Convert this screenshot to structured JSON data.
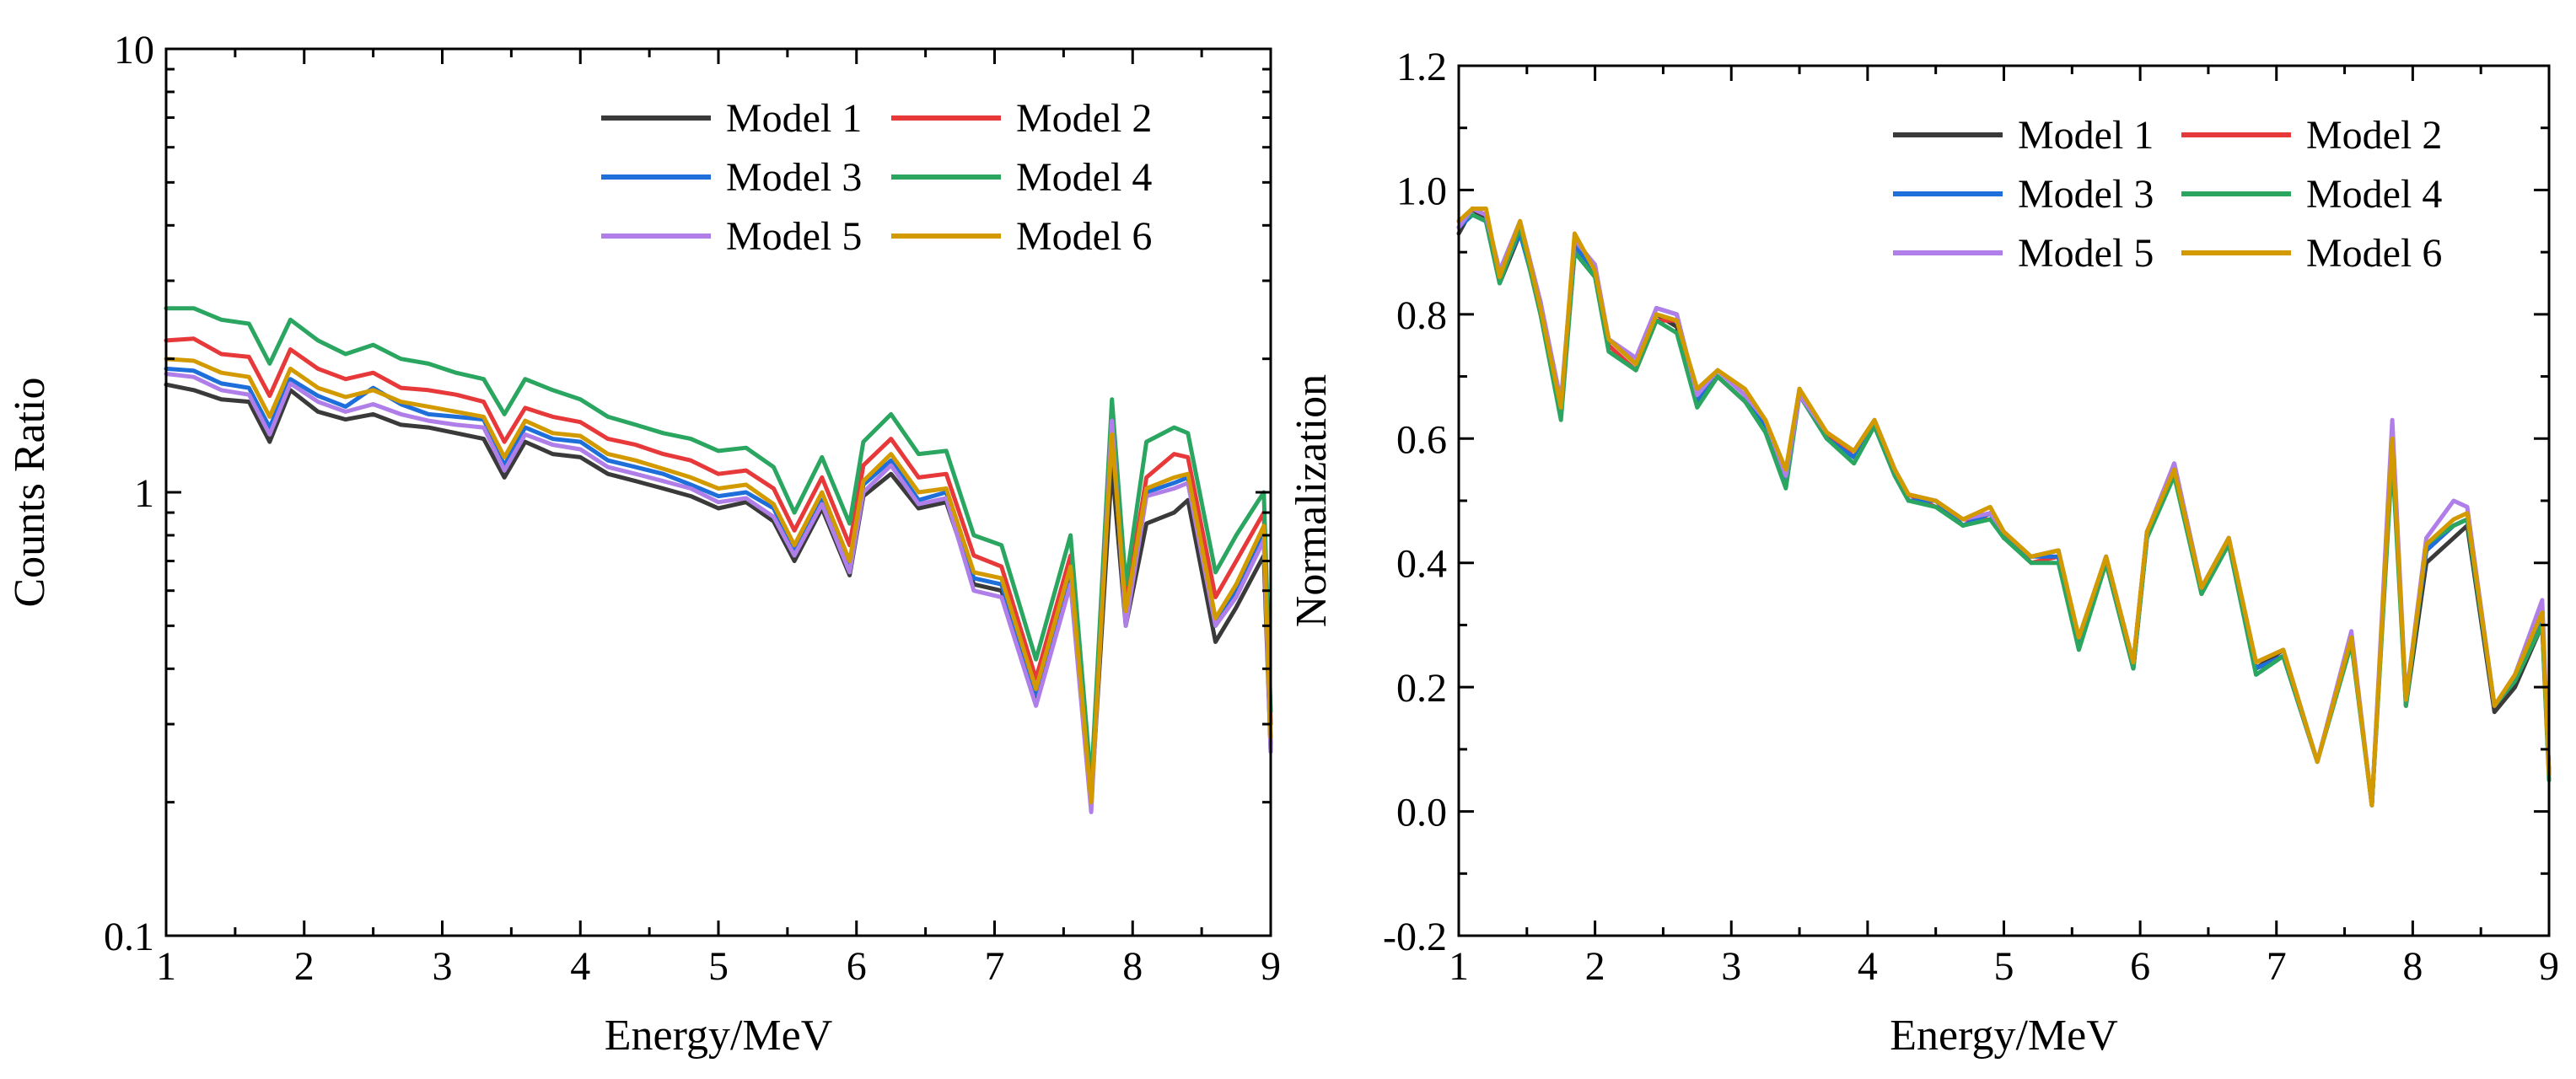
{
  "colors": {
    "model_1": "#3a3a3a",
    "model_2": "#e8393a",
    "model_3": "#1e6fd9",
    "model_4": "#2aa661",
    "model_5": "#b07ee8",
    "model_6": "#d39a00"
  },
  "chart_data": [
    {
      "type": "line",
      "panel": "left",
      "xlabel": "Energy/MeV",
      "ylabel": "Counts Ratio",
      "yscale": "log",
      "xlim": [
        1,
        9
      ],
      "ylim": [
        0.1,
        10
      ],
      "x_ticks": [
        "1",
        "2",
        "3",
        "4",
        "5",
        "6",
        "7",
        "8",
        "9"
      ],
      "y_ticks": [
        "0.1",
        "1",
        "10"
      ],
      "legend": [
        "Model 1",
        "Model 2",
        "Model 3",
        "Model 4",
        "Model 5",
        "Model 6"
      ],
      "legend_position": "top-right",
      "x": [
        1.0,
        1.2,
        1.4,
        1.6,
        1.75,
        1.9,
        2.1,
        2.3,
        2.5,
        2.7,
        2.9,
        3.1,
        3.3,
        3.45,
        3.6,
        3.8,
        4.0,
        4.2,
        4.4,
        4.6,
        4.8,
        5.0,
        5.2,
        5.4,
        5.55,
        5.75,
        5.95,
        6.05,
        6.25,
        6.45,
        6.65,
        6.85,
        7.05,
        7.3,
        7.55,
        7.7,
        7.85,
        7.95,
        8.1,
        8.3,
        8.4,
        8.6,
        8.75,
        8.95,
        9.0
      ],
      "series": [
        {
          "name": "Model 1",
          "values": [
            1.75,
            1.7,
            1.62,
            1.6,
            1.3,
            1.7,
            1.52,
            1.46,
            1.5,
            1.42,
            1.4,
            1.36,
            1.32,
            1.08,
            1.3,
            1.22,
            1.2,
            1.1,
            1.06,
            1.02,
            0.98,
            0.92,
            0.95,
            0.86,
            0.7,
            0.92,
            0.65,
            0.98,
            1.1,
            0.92,
            0.95,
            0.62,
            0.6,
            0.34,
            0.64,
            0.2,
            1.15,
            0.5,
            0.85,
            0.9,
            0.96,
            0.46,
            0.55,
            0.72,
            0.26
          ]
        },
        {
          "name": "Model 2",
          "values": [
            2.2,
            2.22,
            2.05,
            2.02,
            1.65,
            2.1,
            1.9,
            1.8,
            1.86,
            1.72,
            1.7,
            1.66,
            1.6,
            1.3,
            1.55,
            1.48,
            1.44,
            1.32,
            1.28,
            1.22,
            1.18,
            1.1,
            1.12,
            1.02,
            0.82,
            1.08,
            0.76,
            1.15,
            1.32,
            1.08,
            1.1,
            0.72,
            0.68,
            0.38,
            0.72,
            0.21,
            1.5,
            0.56,
            1.08,
            1.22,
            1.2,
            0.58,
            0.7,
            0.9,
            0.3
          ]
        },
        {
          "name": "Model 3",
          "values": [
            1.9,
            1.88,
            1.76,
            1.72,
            1.4,
            1.8,
            1.65,
            1.56,
            1.72,
            1.58,
            1.5,
            1.48,
            1.46,
            1.15,
            1.4,
            1.32,
            1.3,
            1.18,
            1.14,
            1.1,
            1.04,
            0.98,
            1.0,
            0.92,
            0.74,
            0.96,
            0.68,
            1.04,
            1.18,
            0.96,
            1.0,
            0.64,
            0.62,
            0.35,
            0.66,
            0.2,
            1.4,
            0.52,
            1.0,
            1.05,
            1.08,
            0.5,
            0.6,
            0.8,
            0.27
          ]
        },
        {
          "name": "Model 4",
          "values": [
            2.6,
            2.6,
            2.45,
            2.4,
            1.95,
            2.45,
            2.2,
            2.05,
            2.15,
            2.0,
            1.95,
            1.86,
            1.8,
            1.5,
            1.8,
            1.7,
            1.62,
            1.48,
            1.42,
            1.36,
            1.32,
            1.24,
            1.26,
            1.14,
            0.9,
            1.2,
            0.85,
            1.3,
            1.5,
            1.22,
            1.24,
            0.8,
            0.76,
            0.42,
            0.8,
            0.22,
            1.62,
            0.62,
            1.3,
            1.4,
            1.36,
            0.66,
            0.8,
            1.0,
            0.32
          ]
        },
        {
          "name": "Model 5",
          "values": [
            1.85,
            1.82,
            1.7,
            1.66,
            1.35,
            1.76,
            1.6,
            1.52,
            1.58,
            1.5,
            1.45,
            1.42,
            1.4,
            1.12,
            1.35,
            1.28,
            1.25,
            1.14,
            1.1,
            1.06,
            1.02,
            0.95,
            0.97,
            0.88,
            0.72,
            0.94,
            0.66,
            1.0,
            1.15,
            0.94,
            0.97,
            0.6,
            0.58,
            0.33,
            0.62,
            0.19,
            1.45,
            0.5,
            0.98,
            1.02,
            1.05,
            0.5,
            0.58,
            0.78,
            0.26
          ]
        },
        {
          "name": "Model 6",
          "values": [
            2.0,
            1.98,
            1.86,
            1.82,
            1.48,
            1.9,
            1.72,
            1.64,
            1.7,
            1.6,
            1.56,
            1.52,
            1.48,
            1.2,
            1.45,
            1.36,
            1.34,
            1.22,
            1.18,
            1.13,
            1.08,
            1.02,
            1.04,
            0.94,
            0.76,
            1.0,
            0.7,
            1.06,
            1.22,
            1.0,
            1.02,
            0.66,
            0.64,
            0.36,
            0.68,
            0.2,
            1.35,
            0.54,
            1.02,
            1.08,
            1.1,
            0.52,
            0.62,
            0.84,
            0.28
          ]
        }
      ]
    },
    {
      "type": "line",
      "panel": "right",
      "xlabel": "Energy/MeV",
      "ylabel": "Normalization",
      "yscale": "linear",
      "xlim": [
        1,
        9
      ],
      "ylim": [
        -0.2,
        1.2
      ],
      "x_ticks": [
        "1",
        "2",
        "3",
        "4",
        "5",
        "6",
        "7",
        "8",
        "9"
      ],
      "y_ticks": [
        "-0.2",
        "0.0",
        "0.2",
        "0.4",
        "0.6",
        "0.8",
        "1.0",
        "1.2"
      ],
      "legend": [
        "Model 1",
        "Model 2",
        "Model 3",
        "Model 4",
        "Model 5",
        "Model 6"
      ],
      "legend_position": "top-right",
      "x": [
        1.0,
        1.1,
        1.2,
        1.3,
        1.45,
        1.6,
        1.75,
        1.85,
        2.0,
        2.1,
        2.3,
        2.45,
        2.6,
        2.75,
        2.9,
        3.1,
        3.25,
        3.4,
        3.5,
        3.7,
        3.9,
        4.05,
        4.2,
        4.3,
        4.5,
        4.7,
        4.9,
        5.0,
        5.2,
        5.4,
        5.55,
        5.75,
        5.95,
        6.05,
        6.25,
        6.45,
        6.65,
        6.85,
        7.05,
        7.3,
        7.55,
        7.7,
        7.85,
        7.95,
        8.1,
        8.3,
        8.4,
        8.6,
        8.75,
        8.95,
        9.0
      ],
      "series": [
        {
          "name": "Model 1",
          "values": [
            0.93,
            0.97,
            0.95,
            0.85,
            0.93,
            0.82,
            0.64,
            0.9,
            0.86,
            0.76,
            0.72,
            0.8,
            0.78,
            0.66,
            0.7,
            0.66,
            0.62,
            0.54,
            0.68,
            0.6,
            0.58,
            0.62,
            0.55,
            0.5,
            0.5,
            0.46,
            0.48,
            0.44,
            0.41,
            0.42,
            0.27,
            0.4,
            0.23,
            0.44,
            0.56,
            0.36,
            0.44,
            0.23,
            0.26,
            0.08,
            0.28,
            0.01,
            0.6,
            0.17,
            0.4,
            0.44,
            0.46,
            0.16,
            0.2,
            0.3,
            0.06
          ]
        },
        {
          "name": "Model 2",
          "values": [
            0.94,
            0.97,
            0.96,
            0.86,
            0.94,
            0.8,
            0.65,
            0.92,
            0.87,
            0.75,
            0.71,
            0.79,
            0.79,
            0.67,
            0.7,
            0.66,
            0.63,
            0.53,
            0.67,
            0.61,
            0.57,
            0.62,
            0.54,
            0.51,
            0.49,
            0.47,
            0.47,
            0.45,
            0.4,
            0.41,
            0.27,
            0.41,
            0.24,
            0.45,
            0.55,
            0.35,
            0.44,
            0.23,
            0.25,
            0.08,
            0.28,
            0.01,
            0.58,
            0.18,
            0.42,
            0.46,
            0.47,
            0.17,
            0.21,
            0.31,
            0.06
          ]
        },
        {
          "name": "Model 3",
          "values": [
            0.94,
            0.96,
            0.95,
            0.86,
            0.93,
            0.81,
            0.65,
            0.91,
            0.87,
            0.76,
            0.72,
            0.81,
            0.8,
            0.66,
            0.71,
            0.67,
            0.62,
            0.53,
            0.67,
            0.6,
            0.57,
            0.62,
            0.54,
            0.5,
            0.5,
            0.46,
            0.48,
            0.44,
            0.41,
            0.41,
            0.27,
            0.41,
            0.23,
            0.45,
            0.55,
            0.36,
            0.43,
            0.23,
            0.25,
            0.08,
            0.28,
            0.01,
            0.6,
            0.18,
            0.42,
            0.46,
            0.47,
            0.17,
            0.21,
            0.31,
            0.06
          ]
        },
        {
          "name": "Model 4",
          "values": [
            0.95,
            0.96,
            0.95,
            0.85,
            0.94,
            0.8,
            0.63,
            0.9,
            0.86,
            0.74,
            0.71,
            0.79,
            0.77,
            0.65,
            0.7,
            0.66,
            0.61,
            0.52,
            0.67,
            0.6,
            0.56,
            0.62,
            0.54,
            0.5,
            0.49,
            0.46,
            0.47,
            0.44,
            0.4,
            0.4,
            0.26,
            0.4,
            0.23,
            0.44,
            0.54,
            0.35,
            0.43,
            0.22,
            0.25,
            0.08,
            0.27,
            0.01,
            0.57,
            0.17,
            0.43,
            0.46,
            0.47,
            0.17,
            0.21,
            0.3,
            0.05
          ]
        },
        {
          "name": "Model 5",
          "values": [
            0.94,
            0.97,
            0.96,
            0.87,
            0.95,
            0.82,
            0.66,
            0.92,
            0.88,
            0.76,
            0.73,
            0.81,
            0.8,
            0.67,
            0.71,
            0.67,
            0.63,
            0.54,
            0.67,
            0.61,
            0.58,
            0.63,
            0.55,
            0.51,
            0.5,
            0.47,
            0.48,
            0.45,
            0.41,
            0.42,
            0.28,
            0.41,
            0.24,
            0.45,
            0.56,
            0.36,
            0.44,
            0.24,
            0.26,
            0.08,
            0.29,
            0.01,
            0.63,
            0.18,
            0.44,
            0.5,
            0.49,
            0.17,
            0.22,
            0.34,
            0.06
          ]
        },
        {
          "name": "Model 6",
          "values": [
            0.95,
            0.97,
            0.97,
            0.86,
            0.95,
            0.81,
            0.65,
            0.93,
            0.87,
            0.76,
            0.72,
            0.8,
            0.79,
            0.68,
            0.71,
            0.68,
            0.63,
            0.55,
            0.68,
            0.61,
            0.58,
            0.63,
            0.55,
            0.51,
            0.5,
            0.47,
            0.49,
            0.45,
            0.41,
            0.42,
            0.28,
            0.41,
            0.24,
            0.45,
            0.55,
            0.36,
            0.44,
            0.24,
            0.26,
            0.08,
            0.28,
            0.01,
            0.6,
            0.18,
            0.43,
            0.47,
            0.48,
            0.17,
            0.22,
            0.32,
            0.06
          ]
        }
      ]
    }
  ]
}
